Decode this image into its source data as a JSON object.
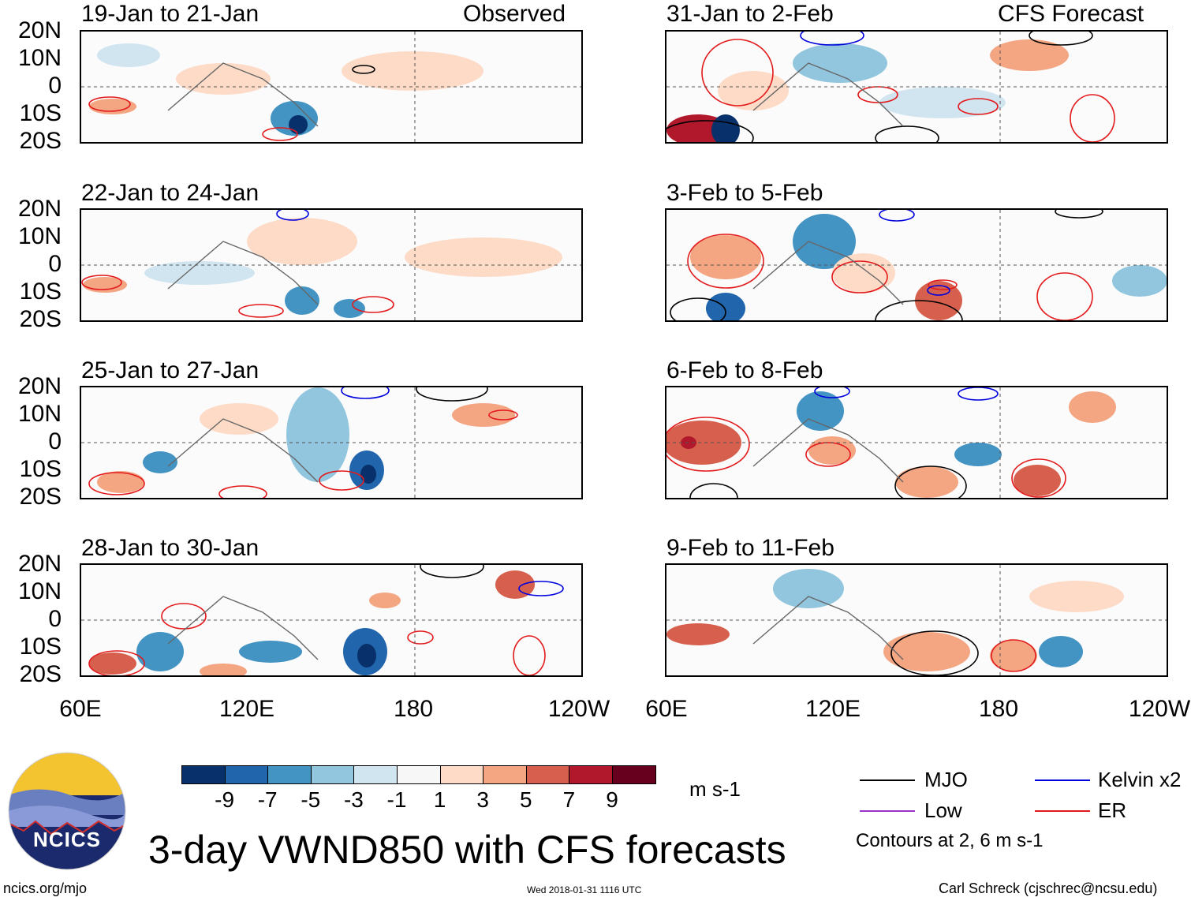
{
  "panels_left": [
    {
      "period": "19-Jan to 21-Jan",
      "tag": "Observed"
    },
    {
      "period": "22-Jan to 24-Jan",
      "tag": ""
    },
    {
      "period": "25-Jan to 27-Jan",
      "tag": ""
    },
    {
      "period": "28-Jan to 30-Jan",
      "tag": ""
    }
  ],
  "panels_right": [
    {
      "period": "31-Jan to 2-Feb",
      "tag": "CFS Forecast"
    },
    {
      "period": "3-Feb to 5-Feb",
      "tag": ""
    },
    {
      "period": "6-Feb to 8-Feb",
      "tag": ""
    },
    {
      "period": "9-Feb to 11-Feb",
      "tag": ""
    }
  ],
  "lat_labels": [
    "20N",
    "10N",
    "0",
    "10S",
    "20S"
  ],
  "lon_labels": [
    "60E",
    "120E",
    "180",
    "120W"
  ],
  "colorbar": {
    "colors": [
      "#08306b",
      "#2166ac",
      "#4393c3",
      "#92c5de",
      "#d1e5f0",
      "#f7f7f7",
      "#fddbc7",
      "#f4a582",
      "#d6604d",
      "#b2182b",
      "#67001f"
    ],
    "labels": [
      "-9",
      "-7",
      "-5",
      "-3",
      "-1",
      "1",
      "3",
      "5",
      "7",
      "9"
    ],
    "units": "m s-1"
  },
  "legend": {
    "items": [
      {
        "label": "MJO",
        "color": "#000000"
      },
      {
        "label": "Kelvin x2",
        "color": "#0000dd"
      },
      {
        "label": "Low",
        "color": "#9a32cd"
      },
      {
        "label": "ER",
        "color": "#e31a1c"
      }
    ],
    "note": "Contours at 2, 6 m s-1"
  },
  "logo_text": "NCICS",
  "main_title": "3-day VWND850 with CFS forecasts",
  "footer": {
    "left": "ncics.org/mjo",
    "center": "Wed 2018-01-31 1116 UTC",
    "right": "Carl Schreck (cjschrec@ncsu.edu)"
  },
  "colors": {
    "equator_line": "#555555",
    "coast": "#666666"
  }
}
